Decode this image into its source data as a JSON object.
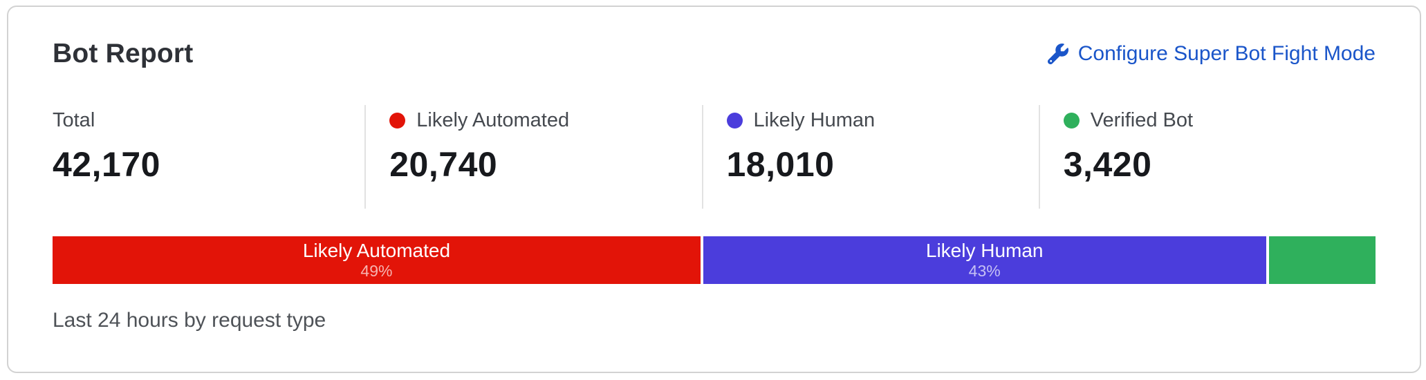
{
  "card": {
    "title": "Bot Report",
    "action_link": {
      "label": "Configure Super Bot Fight Mode",
      "icon": "wrench-icon",
      "color": "#1a55c9"
    },
    "stats": [
      {
        "label": "Total",
        "value": "42,170",
        "dot_color": ""
      },
      {
        "label": "Likely Automated",
        "value": "20,740",
        "dot_color": "#e21408"
      },
      {
        "label": "Likely Human",
        "value": "18,010",
        "dot_color": "#4b3ddc"
      },
      {
        "label": "Verified Bot",
        "value": "3,420",
        "dot_color": "#2fb05c"
      }
    ],
    "bar": {
      "segments": [
        {
          "label": "Likely Automated",
          "percent_label": "49%",
          "width_pct": 49.18,
          "color": "#e21408"
        },
        {
          "label": "Likely Human",
          "percent_label": "43%",
          "width_pct": 42.71,
          "color": "#4b3ddc"
        },
        {
          "label": "",
          "percent_label": "",
          "width_pct": 8.11,
          "color": "#2fb05c"
        }
      ]
    },
    "footer": "Last 24 hours by request type"
  },
  "chart_data": {
    "type": "bar",
    "subtype": "stacked-percentage-bar",
    "title": "Bot Report",
    "categories": [
      "Likely Automated",
      "Likely Human",
      "Verified Bot"
    ],
    "values": [
      20740,
      18010,
      3420
    ],
    "percentages": [
      49,
      43,
      8
    ],
    "total": 42170,
    "colors": [
      "#e21408",
      "#4b3ddc",
      "#2fb05c"
    ],
    "note": "Last 24 hours by request type",
    "legend_position": "top",
    "grid": false
  }
}
